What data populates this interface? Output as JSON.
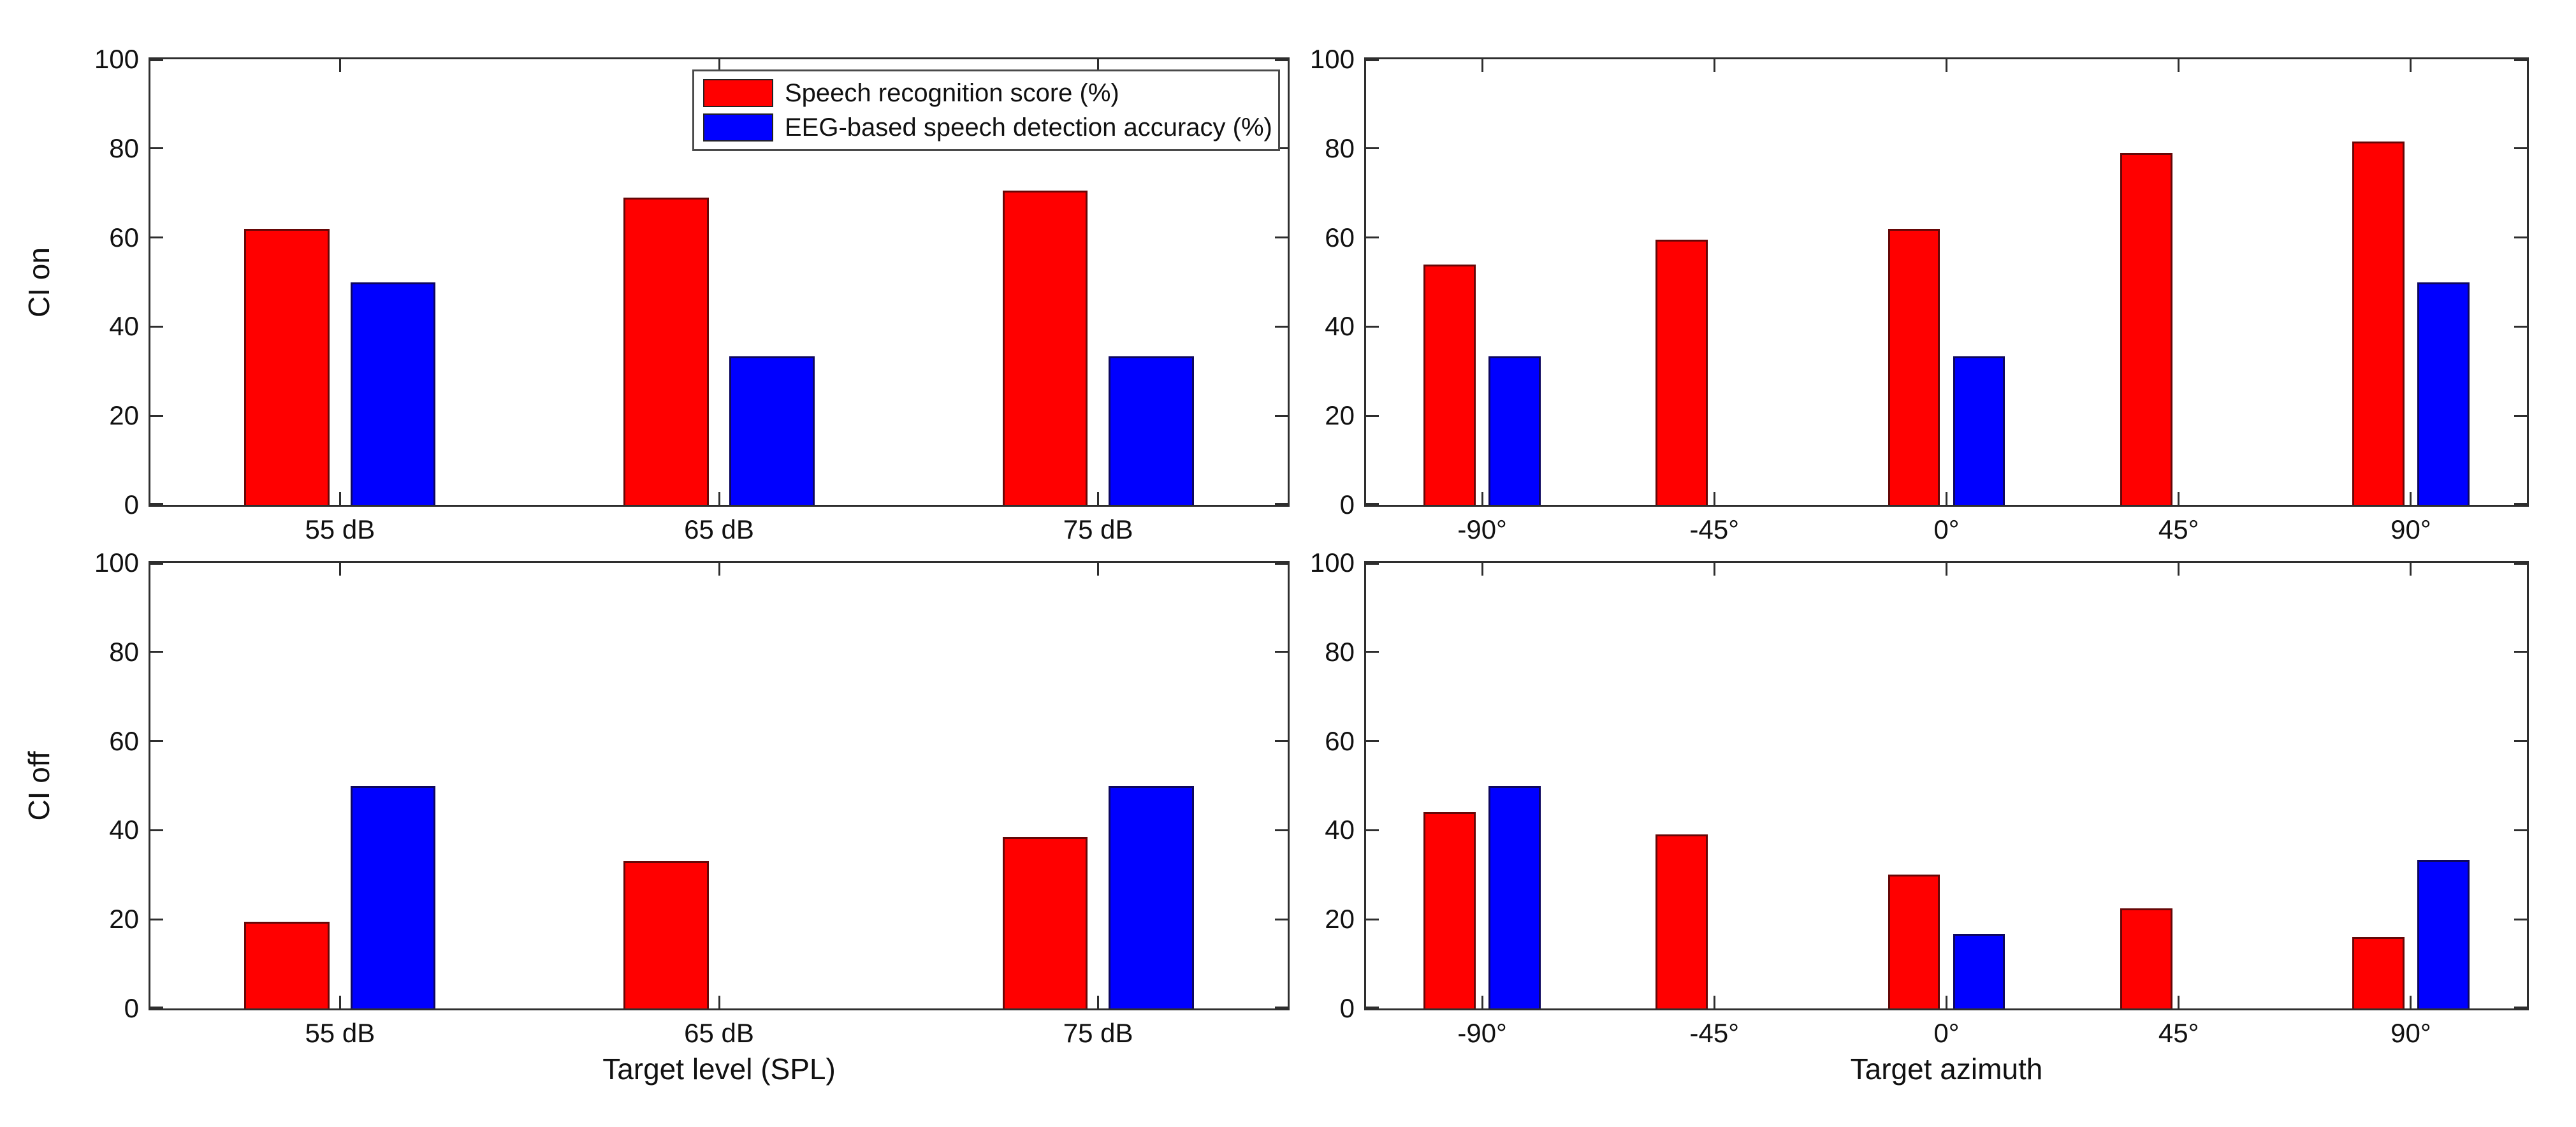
{
  "legend": {
    "items": [
      {
        "label": "Speech recognition score (%)",
        "color": "#ff0000"
      },
      {
        "label": "EEG-based speech detection accuracy (%)",
        "color": "#0000ff"
      }
    ],
    "position": "top-right-inside-first-subplot"
  },
  "chart_data": [
    {
      "id": "ci_on_level",
      "type": "bar",
      "row_label": "CI on",
      "xlabel": "",
      "categories": [
        "55 dB",
        "65 dB",
        "75 dB"
      ],
      "series": [
        {
          "name": "Speech recognition score (%)",
          "color": "#ff0000",
          "values": [
            62,
            69,
            70.5
          ]
        },
        {
          "name": "EEG-based speech detection accuracy (%)",
          "color": "#0000ff",
          "values": [
            50,
            33.3,
            33.3
          ]
        }
      ],
      "ylim": [
        0,
        100
      ],
      "yticks": [
        0,
        20,
        40,
        60,
        80,
        100
      ],
      "grid": false,
      "box": true
    },
    {
      "id": "ci_on_azimuth",
      "type": "bar",
      "row_label": "",
      "xlabel": "",
      "categories": [
        "-90°",
        "-45°",
        "0°",
        "45°",
        "90°"
      ],
      "series": [
        {
          "name": "Speech recognition score (%)",
          "color": "#ff0000",
          "values": [
            54,
            59.5,
            62,
            79,
            81.5
          ]
        },
        {
          "name": "EEG-based speech detection accuracy (%)",
          "color": "#0000ff",
          "values": [
            33.3,
            0,
            33.3,
            0,
            50
          ]
        }
      ],
      "ylim": [
        0,
        100
      ],
      "yticks": [
        0,
        20,
        40,
        60,
        80,
        100
      ],
      "grid": false,
      "box": true
    },
    {
      "id": "ci_off_level",
      "type": "bar",
      "row_label": "CI off",
      "xlabel": "Target level (SPL)",
      "categories": [
        "55 dB",
        "65 dB",
        "75 dB"
      ],
      "series": [
        {
          "name": "Speech recognition score (%)",
          "color": "#ff0000",
          "values": [
            19.5,
            33,
            38.5
          ]
        },
        {
          "name": "EEG-based speech detection accuracy (%)",
          "color": "#0000ff",
          "values": [
            50,
            0,
            50
          ]
        }
      ],
      "ylim": [
        0,
        100
      ],
      "yticks": [
        0,
        20,
        40,
        60,
        80,
        100
      ],
      "grid": false,
      "box": true
    },
    {
      "id": "ci_off_azimuth",
      "type": "bar",
      "row_label": "",
      "xlabel": "Target azimuth",
      "categories": [
        "-90°",
        "-45°",
        "0°",
        "45°",
        "90°"
      ],
      "series": [
        {
          "name": "Speech recognition score (%)",
          "color": "#ff0000",
          "values": [
            44,
            39,
            30,
            22.5,
            16
          ]
        },
        {
          "name": "EEG-based speech detection accuracy (%)",
          "color": "#0000ff",
          "values": [
            50,
            0,
            16.7,
            0,
            33.3
          ]
        }
      ],
      "ylim": [
        0,
        100
      ],
      "yticks": [
        0,
        20,
        40,
        60,
        80,
        100
      ],
      "grid": false,
      "box": true
    }
  ]
}
